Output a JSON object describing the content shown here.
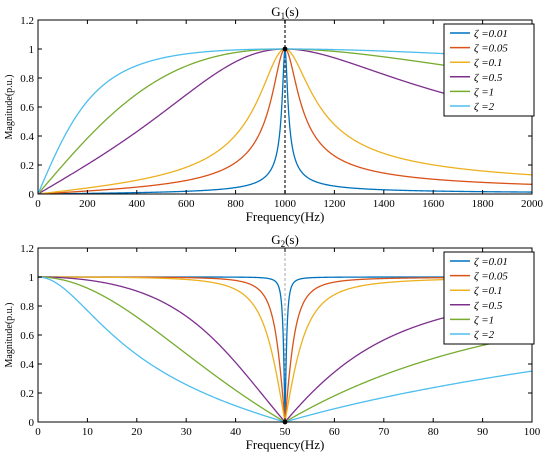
{
  "chart_data": [
    {
      "type": "line",
      "title": "G",
      "title_sub": "1",
      "title_tail": "(s)",
      "xlabel": "Frequency(Hz)",
      "ylabel": "Magnitude(p.u.)",
      "xlim": [
        0,
        2000
      ],
      "ylim": [
        0,
        1.2
      ],
      "xticks": [
        "0",
        "200",
        "400",
        "600",
        "800",
        "1000",
        "1200",
        "1400",
        "1600",
        "1800",
        "2000"
      ],
      "yticks": [
        "0",
        "0.2",
        "0.4",
        "0.6",
        "0.8",
        "1",
        "1.2"
      ],
      "filter": "bandpass",
      "center_frequency": 1000,
      "reference_line_x": 1000,
      "marker": [
        1000,
        1
      ],
      "legend_placement": "top-right",
      "grid": false,
      "series": [
        {
          "name": "ζ =0.01",
          "zeta": 0.01,
          "color": "#0072BD"
        },
        {
          "name": "ζ =0.05",
          "zeta": 0.05,
          "color": "#D95319"
        },
        {
          "name": "ζ =0.1",
          "zeta": 0.1,
          "color": "#EDB120"
        },
        {
          "name": "ζ =0.5",
          "zeta": 0.5,
          "color": "#7E2F8E"
        },
        {
          "name": "ζ =1",
          "zeta": 1,
          "color": "#77AC30"
        },
        {
          "name": "ζ =2",
          "zeta": 2,
          "color": "#4DBEEE"
        }
      ]
    },
    {
      "type": "line",
      "title": "G",
      "title_sub": "2",
      "title_tail": "(s)",
      "xlabel": "Frequency(Hz)",
      "ylabel": "Magnitude(p.u.)",
      "xlim": [
        0,
        100
      ],
      "ylim": [
        0,
        1.2
      ],
      "xticks": [
        "0",
        "10",
        "20",
        "30",
        "40",
        "50",
        "60",
        "70",
        "80",
        "90",
        "100"
      ],
      "yticks": [
        "0",
        "0.2",
        "0.4",
        "0.6",
        "0.8",
        "1",
        "1.2"
      ],
      "filter": "notch",
      "center_frequency": 50,
      "reference_line_x": 50,
      "marker": [
        50,
        0
      ],
      "legend_placement": "top-right",
      "grid": false,
      "series": [
        {
          "name": "ζ =0.01",
          "zeta": 0.01,
          "color": "#0072BD"
        },
        {
          "name": "ζ =0.05",
          "zeta": 0.05,
          "color": "#D95319"
        },
        {
          "name": "ζ =0.1",
          "zeta": 0.1,
          "color": "#EDB120"
        },
        {
          "name": "ζ =0.5",
          "zeta": 0.5,
          "color": "#7E2F8E"
        },
        {
          "name": "ζ =1",
          "zeta": 1,
          "color": "#77AC30"
        },
        {
          "name": "ζ =2",
          "zeta": 2,
          "color": "#4DBEEE"
        }
      ]
    }
  ]
}
